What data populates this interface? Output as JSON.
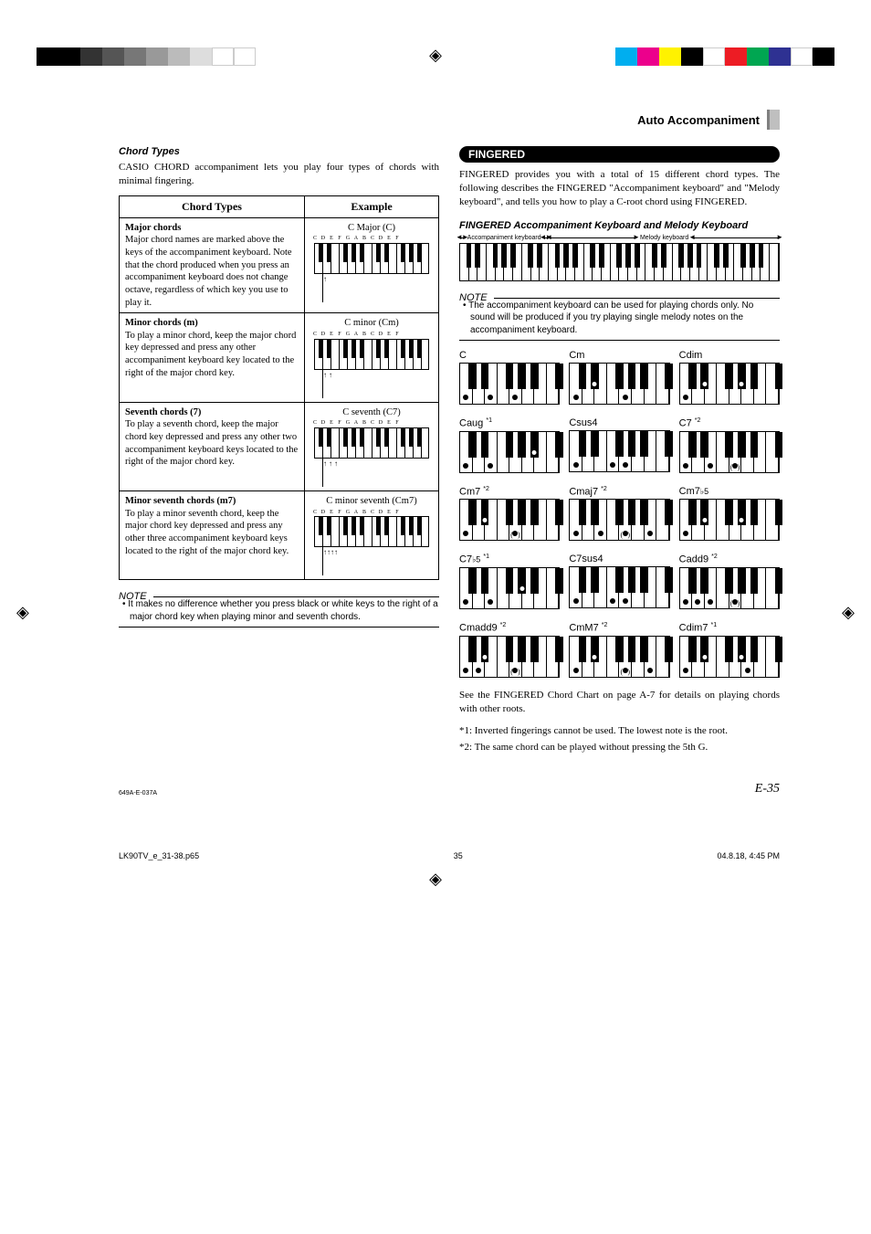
{
  "crop_colors_left": [
    "#000000",
    "#000000",
    "#333333",
    "#555555",
    "#777777",
    "#999999",
    "#bbbbbb",
    "#dddddd",
    "#ffffff",
    "#ffffff"
  ],
  "crop_colors_right": [
    "#00aeef",
    "#ec008c",
    "#fff200",
    "#000000",
    "#ffffff",
    "#ed1c24",
    "#00a651",
    "#2e3192",
    "#ffffff",
    "#000000"
  ],
  "header": {
    "section": "Auto Accompaniment"
  },
  "left": {
    "chord_types_heading": "Chord Types",
    "intro": "CASIO CHORD accompaniment lets you play four types of chords with minimal fingering.",
    "table": {
      "col1": "Chord Types",
      "col2": "Example",
      "rows": [
        {
          "title": "Major chords",
          "desc": "Major chord names are marked above the keys of the accompaniment keyboard. Note that the chord produced when you press an accompaniment keyboard does not change octave, regardless of which key you use to play it.",
          "example_label": "C Major (C)",
          "arrows": "↑"
        },
        {
          "title": "Minor chords (m)",
          "desc": "To play a minor chord, keep the major chord key depressed and press any other accompaniment keyboard key located to the right of the major chord key.",
          "example_label": "C minor (Cm)",
          "arrows": "↑   ↑"
        },
        {
          "title": "Seventh chords (7)",
          "desc": "To play a seventh chord, keep the major chord key depressed and press any other two accompaniment keyboard keys located to the right of the major chord key.",
          "example_label": "C seventh (C7)",
          "arrows": "↑ ↑ ↑"
        },
        {
          "title": "Minor seventh chords (m7)",
          "desc": "To play a minor seventh chord, keep the major chord key depressed and press any other three accompaniment keyboard keys located to the right of the major chord key.",
          "example_label": "C minor seventh (Cm7)",
          "arrows": "↑↑↑↑"
        }
      ],
      "kb_letters": "C D E F G A B C D E F"
    },
    "note_label": "NOTE",
    "note_text": "• It makes no difference whether you press black or white keys to the right of a major chord key when playing minor and seventh chords."
  },
  "right": {
    "fingered_heading": "FINGERED",
    "fingered_intro": "FINGERED provides you with a total of 15 different chord types. The following describes the FINGERED \"Accompaniment keyboard\" and \"Melody keyboard\", and tells you how to play a C-root chord using FINGERED.",
    "fingered_kb_heading": "FINGERED Accompaniment Keyboard and Melody Keyboard",
    "kb_accomp_label": "Accompaniment keyboard",
    "kb_melody_label": "Melody keyboard",
    "note_label": "NOTE",
    "note_text": "• The accompaniment keyboard can be used for playing chords only. No sound will be produced if you try playing single melody notes on the accompaniment keyboard.",
    "chord_grid": [
      {
        "label": "C",
        "white_dots": [
          0,
          2,
          4
        ],
        "black_dots": [],
        "optional": []
      },
      {
        "label": "Cm",
        "white_dots": [
          0,
          4
        ],
        "black_dots": [
          1
        ],
        "optional": []
      },
      {
        "label": "Cdim",
        "white_dots": [
          0
        ],
        "black_dots": [
          1,
          3
        ],
        "optional": []
      },
      {
        "label": "Caug",
        "sup": "*1",
        "white_dots": [
          0,
          2
        ],
        "black_dots": [
          4
        ],
        "optional": []
      },
      {
        "label": "Csus4",
        "white_dots": [
          0,
          3,
          4
        ],
        "black_dots": [],
        "optional": []
      },
      {
        "label": "C7",
        "sup": "*2",
        "white_dots": [
          0,
          2
        ],
        "black_dots": [
          6
        ],
        "optional": [
          4
        ]
      },
      {
        "label": "Cm7",
        "sup": "*2",
        "white_dots": [
          0
        ],
        "black_dots": [
          1,
          6
        ],
        "optional": [
          4
        ]
      },
      {
        "label": "Cmaj7",
        "sup": "*2",
        "white_dots": [
          0,
          2,
          6
        ],
        "black_dots": [],
        "optional": [
          4
        ]
      },
      {
        "label": "Cm7",
        "flat": "♭5",
        "white_dots": [
          0
        ],
        "black_dots": [
          1,
          3,
          6
        ],
        "optional": []
      },
      {
        "label": "C7",
        "flat": "♭5",
        "sup": "*1",
        "white_dots": [
          0,
          2
        ],
        "black_dots": [
          3,
          6
        ],
        "optional": []
      },
      {
        "label": "C7sus4",
        "white_dots": [
          0,
          3,
          4
        ],
        "black_dots": [
          6
        ],
        "optional": []
      },
      {
        "label": "Cadd9",
        "sup": "*2",
        "white_dots": [
          0,
          1,
          2
        ],
        "black_dots": [],
        "optional": [
          4
        ]
      },
      {
        "label": "Cmadd9",
        "sup": "*2",
        "white_dots": [
          0,
          1
        ],
        "black_dots": [
          1
        ],
        "optional": [
          4
        ]
      },
      {
        "label": "CmM7",
        "sup": "*2",
        "white_dots": [
          0,
          6
        ],
        "black_dots": [
          1
        ],
        "optional": [
          4
        ]
      },
      {
        "label": "Cdim7",
        "sup": "*1",
        "white_dots": [
          0,
          5
        ],
        "black_dots": [
          1,
          3
        ],
        "optional": []
      }
    ],
    "see_text": "See the FINGERED Chord Chart on page A-7 for details on playing chords with other roots.",
    "footnote1": "*1: Inverted fingerings cannot be used. The lowest note is the root.",
    "footnote2": "*2: The same chord can be played without pressing the 5th G."
  },
  "footer": {
    "code": "649A-E-037A",
    "page_num": "E-35",
    "file": "LK90TV_e_31-38.p65",
    "page": "35",
    "date": "04.8.18, 4:45 PM"
  },
  "black_key_positions_14": [
    6.3,
    13.3,
    27.7,
    34.8,
    42,
    56.3,
    63.3,
    77.7,
    84.8,
    92
  ],
  "chord_black_positions": [
    8.5,
    21,
    46,
    58.5,
    71,
    96
  ]
}
